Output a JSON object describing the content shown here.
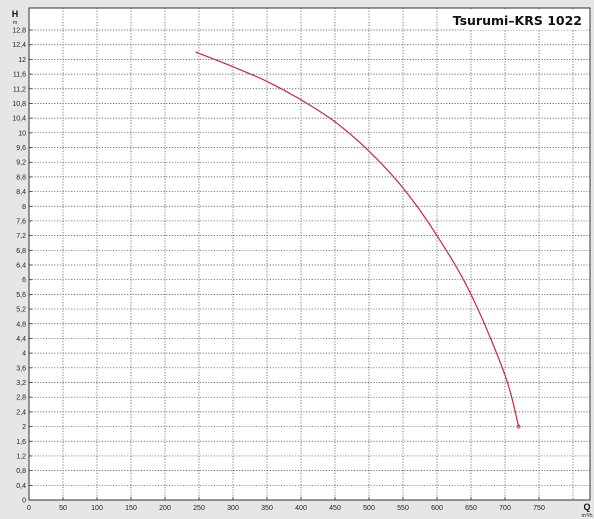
{
  "chart_data": {
    "type": "line",
    "title": "Tsurumi–KRS 1022",
    "xlabel": "Q",
    "xunit": "m³/h",
    "ylabel": "H",
    "yunit": "m",
    "xlim": [
      0,
      825
    ],
    "ylim": [
      0,
      13.4
    ],
    "grid": true,
    "grid_style": "dotted",
    "x_ticks": [
      0,
      50,
      100,
      150,
      200,
      250,
      300,
      350,
      400,
      450,
      500,
      550,
      600,
      650,
      700,
      750
    ],
    "x_tick_labels": [
      "0",
      "50",
      "100",
      "150",
      "200",
      "250",
      "300",
      "350",
      "400",
      "450",
      "500",
      "550",
      "600",
      "650",
      "700",
      "750"
    ],
    "y_ticks": [
      0,
      0.4,
      0.8,
      1.2,
      1.6,
      2,
      2.4,
      2.8,
      3.2,
      3.6,
      4,
      4.4,
      4.8,
      5.2,
      5.6,
      6,
      6.4,
      6.8,
      7.2,
      7.6,
      8,
      8.4,
      8.8,
      9.2,
      9.6,
      10,
      10.4,
      10.8,
      11.2,
      11.6,
      12,
      12.4,
      12.8
    ],
    "y_tick_labels": [
      "0",
      "0,4",
      "0,8",
      "1,2",
      "1,6",
      "2",
      "2,4",
      "2,8",
      "3,2",
      "3,6",
      "4",
      "4,4",
      "4,8",
      "5,2",
      "5,6",
      "6",
      "6,4",
      "6,8",
      "7,2",
      "7,6",
      "8",
      "8,4",
      "8,8",
      "9,2",
      "9,6",
      "10",
      "10,4",
      "10,8",
      "11,2",
      "11,6",
      "12",
      "12,4",
      "12,8"
    ],
    "series": [
      {
        "color": "#c8283c",
        "x": [
          245,
          300,
          350,
          400,
          450,
          500,
          550,
          600,
          650,
          700,
          720
        ],
        "y": [
          12.2,
          11.8,
          11.4,
          10.9,
          10.3,
          9.5,
          8.5,
          7.2,
          5.6,
          3.4,
          2.0
        ]
      }
    ]
  }
}
